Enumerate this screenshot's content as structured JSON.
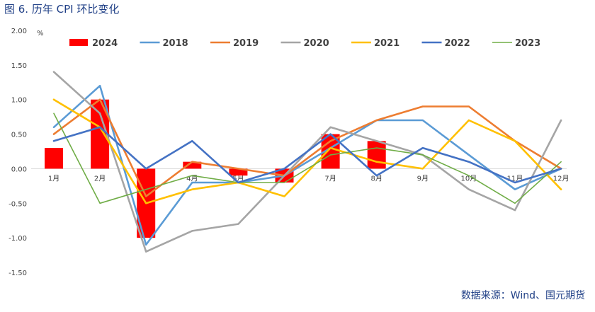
{
  "figure_title": "图 6.  历年 CPI 环比变化",
  "source": "数据来源：Wind、国元期货",
  "colors": {
    "2024": "#ff0000",
    "2018": "#5b9bd5",
    "2019": "#ed7d31",
    "2020": "#a5a5a5",
    "2021": "#ffc000",
    "2022": "#4472c4",
    "2023": "#70ad47"
  },
  "chart_data": {
    "type": "bar",
    "title": "",
    "unit_label": "%",
    "categories": [
      "1月",
      "2月",
      "3月",
      "4月",
      "5月",
      "6月",
      "7月",
      "8月",
      "9月",
      "10月",
      "11月",
      "12月"
    ],
    "ylim": [
      -1.5,
      2.0
    ],
    "yticks": [
      "2.00",
      "1.50",
      "1.00",
      "0.50",
      "0.00",
      "-0.50",
      "-1.00",
      "-1.50"
    ],
    "grid": false,
    "legend_position": "top",
    "bar_series": {
      "name": "2024",
      "values": [
        0.3,
        1.0,
        -1.0,
        0.1,
        -0.1,
        -0.2,
        0.5,
        0.4
      ]
    },
    "line_series": [
      {
        "name": "2018",
        "values": [
          0.6,
          1.2,
          -1.1,
          -0.2,
          -0.2,
          -0.1,
          0.3,
          0.7,
          0.7,
          0.2,
          -0.3,
          0.0
        ]
      },
      {
        "name": "2019",
        "values": [
          0.5,
          1.0,
          -0.4,
          0.1,
          0.0,
          -0.1,
          0.4,
          0.7,
          0.9,
          0.9,
          0.4,
          0.0
        ]
      },
      {
        "name": "2020",
        "values": [
          1.4,
          0.8,
          -1.2,
          -0.9,
          -0.8,
          -0.1,
          0.6,
          0.4,
          0.2,
          -0.3,
          -0.6,
          0.7
        ]
      },
      {
        "name": "2021",
        "values": [
          1.0,
          0.6,
          -0.5,
          -0.3,
          -0.2,
          -0.4,
          0.3,
          0.1,
          0.0,
          0.7,
          0.4,
          -0.3
        ]
      },
      {
        "name": "2022",
        "values": [
          0.4,
          0.6,
          0.0,
          0.4,
          -0.2,
          0.0,
          0.5,
          -0.1,
          0.3,
          0.1,
          -0.2,
          0.0
        ]
      },
      {
        "name": "2023",
        "values": [
          0.8,
          -0.5,
          -0.3,
          -0.1,
          -0.2,
          -0.2,
          0.2,
          0.3,
          0.2,
          -0.1,
          -0.5,
          0.1
        ]
      }
    ]
  }
}
